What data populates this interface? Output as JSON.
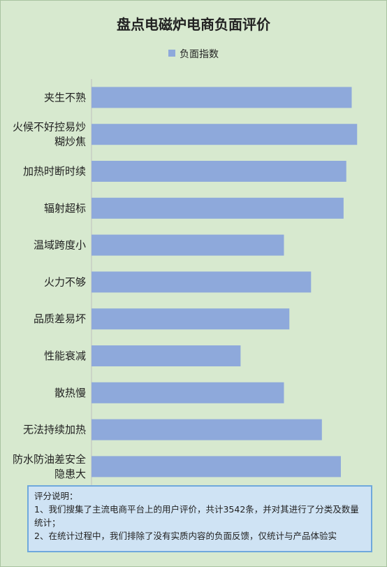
{
  "chart_data": {
    "type": "bar",
    "orientation": "horizontal",
    "title": "盘点电磁炉电商负面评价",
    "categories": [
      "夹生不熟",
      "火候不好控易炒糊炒焦",
      "加热时断时续",
      "辐射超标",
      "温域跨度小",
      "火力不够",
      "品质差易坏",
      "性能衰减",
      "散热慢",
      "无法持续加热",
      "防水防油差安全隐患大"
    ],
    "category_lines": [
      [
        "夹生不熟"
      ],
      [
        "火候不好控易炒",
        "糊炒焦"
      ],
      [
        "加热时断时续"
      ],
      [
        "辐射超标"
      ],
      [
        "温域跨度小"
      ],
      [
        "火力不够"
      ],
      [
        "品质差易坏"
      ],
      [
        "性能衰减"
      ],
      [
        "散热慢"
      ],
      [
        "无法持续加热"
      ],
      [
        "防水防油差安全",
        "隐患大"
      ]
    ],
    "series": [
      {
        "name": "负面指数",
        "values": [
          96,
          98,
          94,
          93,
          71,
          81,
          73,
          55,
          71,
          85,
          92
        ]
      }
    ],
    "xlim": [
      0,
      100
    ],
    "color": "#8ea9db",
    "legend": "top-center",
    "grid": false
  },
  "note": {
    "heading": "评分说明：",
    "line1": "1、我们搜集了主流电商平台上的用户评价，共计3542条，并对其进行了分类及数量统计；",
    "line2": "2、在统计过程中，我们排除了没有实质内容的负面反馈，仅统计与产品体验实"
  }
}
